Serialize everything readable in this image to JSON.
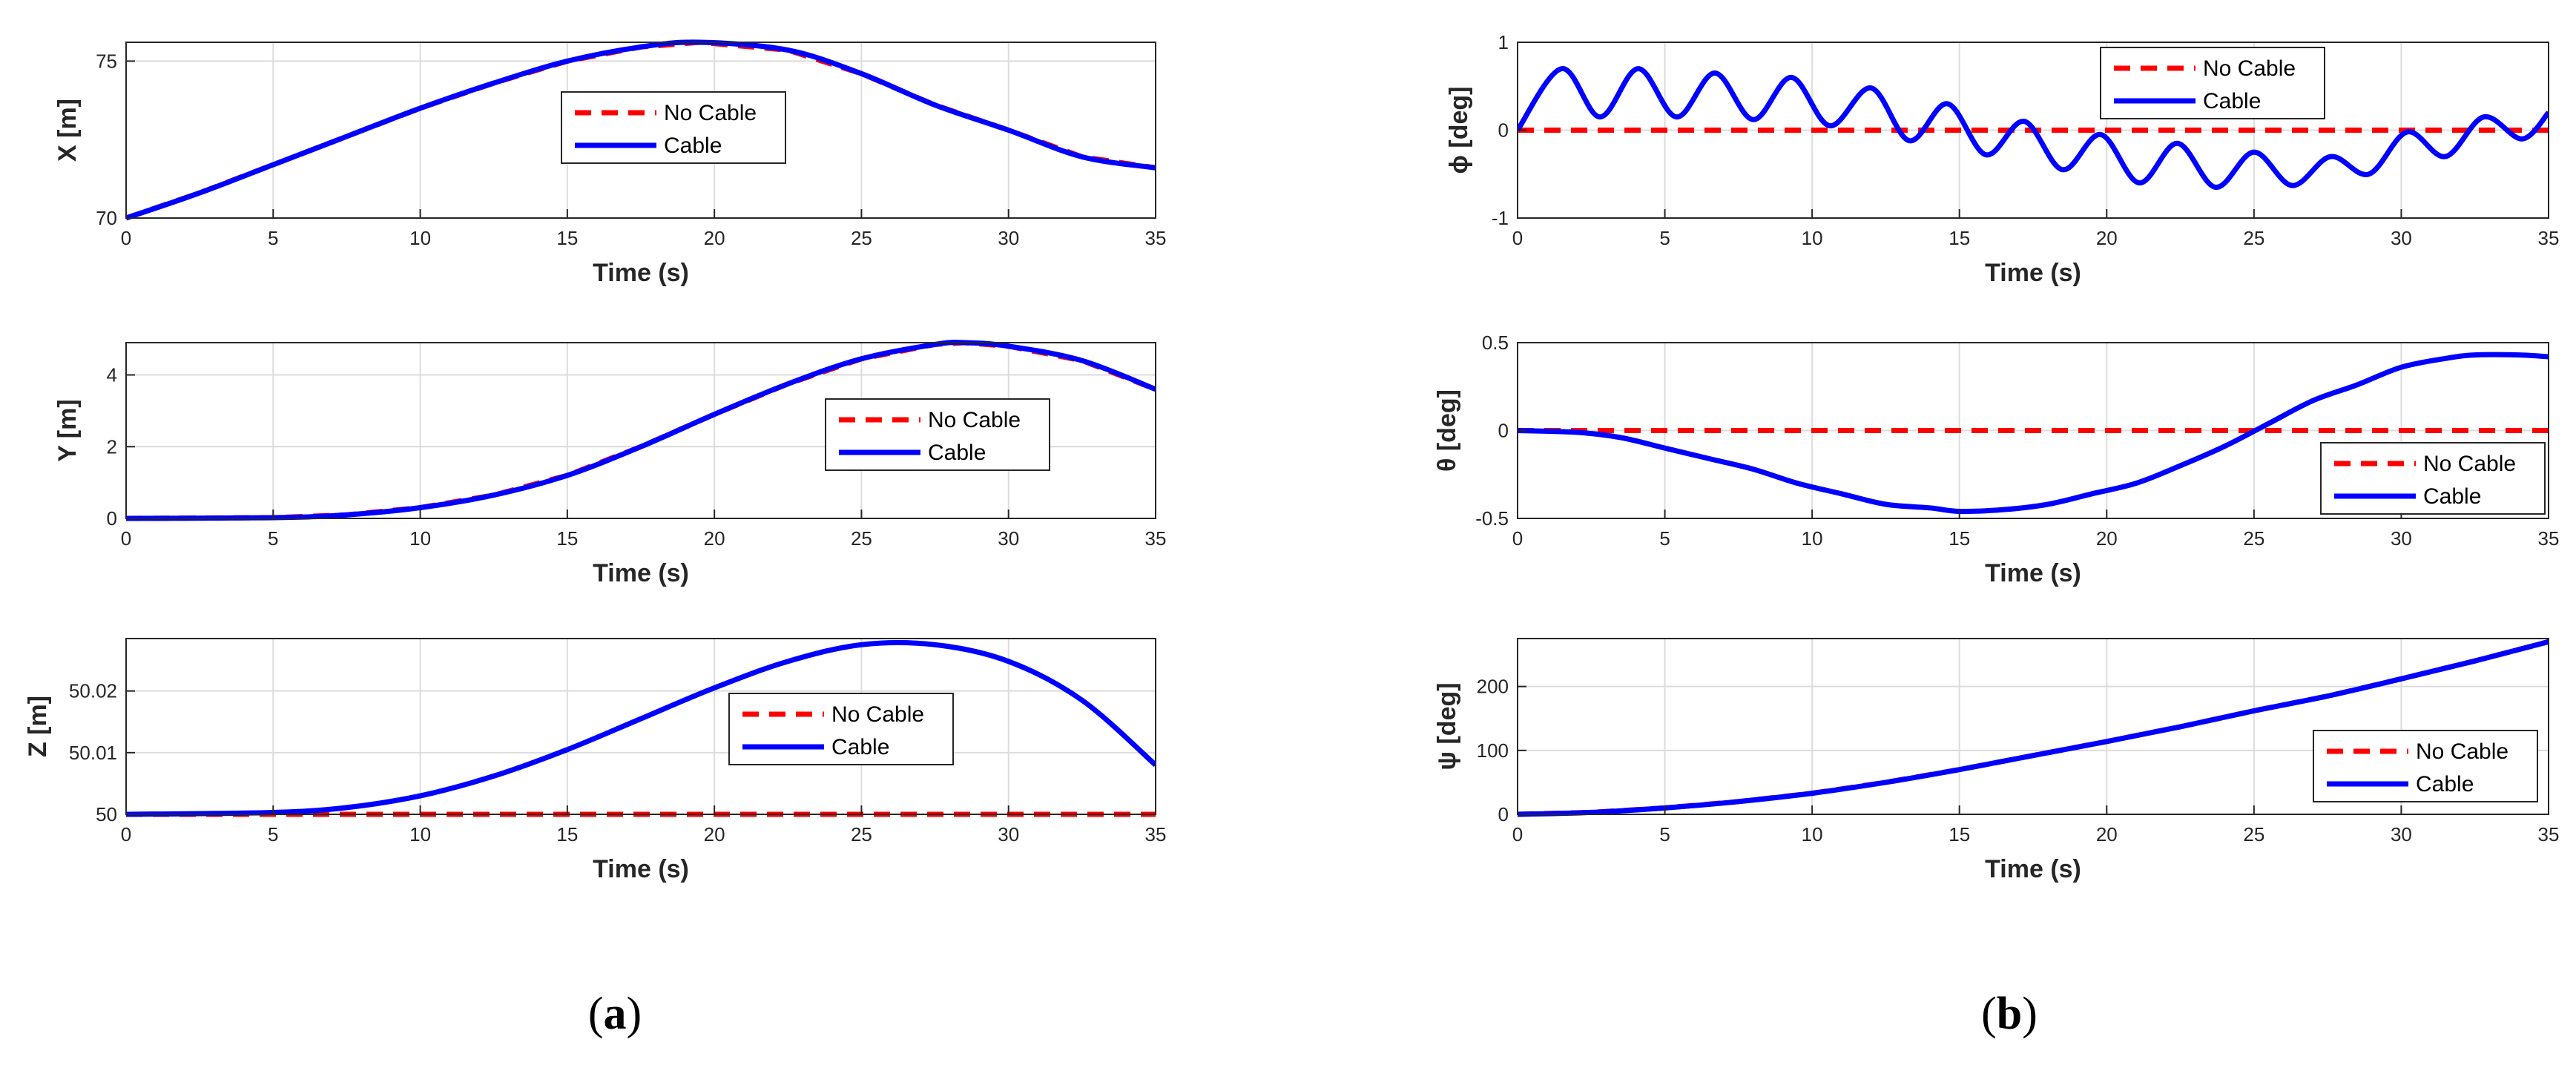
{
  "panel_labels": {
    "a": {
      "open": "(",
      "letter": "a",
      "close": ")"
    },
    "b": {
      "open": "(",
      "letter": "b",
      "close": ")"
    }
  },
  "colors": {
    "no_cable": "#ff0000",
    "cable": "#0000ff",
    "grid": "#dcdcdc",
    "axis": "#262626"
  },
  "chart_data": [
    {
      "id": "x",
      "type": "line",
      "xlabel": "Time (s)",
      "ylabel": "X [m]",
      "xlim": [
        0,
        35
      ],
      "ylim": [
        70,
        75.6
      ],
      "xticks": [
        0,
        5,
        10,
        15,
        20,
        25,
        30,
        35
      ],
      "yticks": [
        70,
        75
      ],
      "grid": true,
      "legend_position": "center",
      "series": [
        {
          "name": "No Cable",
          "style": "dashed",
          "x": [
            0,
            2.5,
            5,
            7.5,
            10,
            12.5,
            15,
            17.5,
            19.5,
            22.5,
            25,
            27.5,
            30,
            32.5,
            35
          ],
          "y": [
            70,
            70.8,
            71.7,
            72.6,
            73.5,
            74.3,
            75,
            75.45,
            75.6,
            75.35,
            74.6,
            73.6,
            72.8,
            71.95,
            71.6
          ]
        },
        {
          "name": "Cable",
          "style": "solid",
          "x": [
            0,
            2.5,
            5,
            7.5,
            10,
            12.5,
            15,
            17.5,
            19.5,
            22.5,
            25,
            27.5,
            30,
            32.5,
            35
          ],
          "y": [
            70,
            70.8,
            71.7,
            72.6,
            73.5,
            74.3,
            75,
            75.45,
            75.6,
            75.35,
            74.6,
            73.6,
            72.8,
            71.95,
            71.6
          ]
        }
      ]
    },
    {
      "id": "y",
      "type": "line",
      "xlabel": "Time (s)",
      "ylabel": "Y [m]",
      "xlim": [
        0,
        35
      ],
      "ylim": [
        0,
        4.9
      ],
      "xticks": [
        0,
        5,
        10,
        15,
        20,
        25,
        30,
        35
      ],
      "yticks": [
        0,
        2,
        4
      ],
      "grid": true,
      "legend_position": "right",
      "series": [
        {
          "name": "No Cable",
          "style": "dashed",
          "x": [
            0,
            5,
            7.5,
            10,
            12.5,
            15,
            17.5,
            20,
            22.5,
            25,
            27.5,
            28.5,
            30,
            32.5,
            35
          ],
          "y": [
            0,
            0.02,
            0.1,
            0.3,
            0.65,
            1.2,
            2,
            2.9,
            3.75,
            4.45,
            4.85,
            4.9,
            4.8,
            4.4,
            3.6
          ]
        },
        {
          "name": "Cable",
          "style": "solid",
          "x": [
            0,
            5,
            7.5,
            10,
            12.5,
            15,
            17.5,
            20,
            22.5,
            25,
            27.5,
            28.5,
            30,
            32.5,
            35
          ],
          "y": [
            0,
            0.02,
            0.1,
            0.3,
            0.65,
            1.2,
            2,
            2.9,
            3.75,
            4.45,
            4.85,
            4.9,
            4.8,
            4.4,
            3.6
          ]
        }
      ]
    },
    {
      "id": "z",
      "type": "line",
      "xlabel": "Time (s)",
      "ylabel": "Z [m]",
      "xlim": [
        0,
        35
      ],
      "ylim": [
        50,
        50.0285
      ],
      "xticks": [
        0,
        5,
        10,
        15,
        20,
        25,
        30,
        35
      ],
      "yticks": [
        50,
        50.01,
        50.02
      ],
      "ytick_labels": [
        "50",
        "50.01",
        "50.02"
      ],
      "grid": true,
      "legend_position": "right",
      "series": [
        {
          "name": "No Cable",
          "style": "dashed",
          "x": [
            0,
            35
          ],
          "y": [
            50,
            50
          ]
        },
        {
          "name": "Cable",
          "style": "solid",
          "x": [
            0,
            5,
            7.5,
            10,
            12.5,
            15,
            17.5,
            20,
            22.5,
            25,
            27.5,
            30,
            32.5,
            35
          ],
          "y": [
            50,
            50.0003,
            50.0011,
            50.003,
            50.0062,
            50.0105,
            50.0155,
            50.0205,
            50.0248,
            50.0275,
            50.0275,
            50.0248,
            50.0185,
            50.008
          ]
        }
      ]
    },
    {
      "id": "phi",
      "type": "line",
      "xlabel": "Time (s)",
      "ylabel": "ϕ [deg]",
      "xlim": [
        0,
        35
      ],
      "ylim": [
        -1,
        1
      ],
      "xticks": [
        0,
        5,
        10,
        15,
        20,
        25,
        30,
        35
      ],
      "yticks": [
        -1,
        0,
        1
      ],
      "grid": true,
      "legend_position": "top-right",
      "series": [
        {
          "name": "No Cable",
          "style": "dashed",
          "x": [
            0,
            35
          ],
          "y": [
            0,
            0
          ]
        },
        {
          "name": "Cable",
          "style": "solid",
          "oscillation_period_s": 2.6,
          "x": [
            0,
            1.5,
            2.8,
            4.1,
            5.4,
            6.7,
            8,
            9.3,
            10.6,
            12,
            13.3,
            14.6,
            15.9,
            17.2,
            18.5,
            19.8,
            21.1,
            22.4,
            23.7,
            25,
            26.3,
            27.6,
            28.9,
            30.2,
            31.5,
            32.8,
            34.1,
            35
          ],
          "y": [
            0,
            0.7,
            0.15,
            0.7,
            0.15,
            0.65,
            0.12,
            0.6,
            0.05,
            0.48,
            -0.12,
            0.3,
            -0.28,
            0.1,
            -0.45,
            -0.05,
            -0.6,
            -0.15,
            -0.65,
            -0.25,
            -0.63,
            -0.3,
            -0.5,
            -0.02,
            -0.3,
            0.15,
            -0.1,
            0.2
          ]
        }
      ]
    },
    {
      "id": "theta",
      "type": "line",
      "xlabel": "Time (s)",
      "ylabel": "θ [deg]",
      "xlim": [
        0,
        35
      ],
      "ylim": [
        -0.5,
        0.5
      ],
      "xticks": [
        0,
        5,
        10,
        15,
        20,
        25,
        30,
        35
      ],
      "yticks": [
        -0.5,
        0,
        0.5
      ],
      "grid": true,
      "legend_position": "bottom-right",
      "series": [
        {
          "name": "No Cable",
          "style": "dashed",
          "x": [
            0,
            35
          ],
          "y": [
            0,
            0
          ]
        },
        {
          "name": "Cable",
          "style": "solid",
          "x": [
            0,
            2,
            3.5,
            5,
            6.5,
            8,
            9.5,
            11,
            12.5,
            14,
            15,
            16.5,
            18,
            19.5,
            21,
            22.5,
            24,
            25.5,
            27,
            28.5,
            30,
            31.5,
            32.5,
            34,
            35
          ],
          "y": [
            0,
            -0.01,
            -0.04,
            -0.1,
            -0.16,
            -0.22,
            -0.3,
            -0.36,
            -0.42,
            -0.44,
            -0.46,
            -0.45,
            -0.42,
            -0.36,
            -0.3,
            -0.2,
            -0.09,
            0.04,
            0.17,
            0.26,
            0.36,
            0.41,
            0.43,
            0.43,
            0.42
          ]
        }
      ]
    },
    {
      "id": "psi",
      "type": "line",
      "xlabel": "Time (s)",
      "ylabel": "ψ [deg]",
      "xlim": [
        0,
        35
      ],
      "ylim": [
        0,
        275
      ],
      "xticks": [
        0,
        5,
        10,
        15,
        20,
        25,
        30,
        35
      ],
      "yticks": [
        0,
        100,
        200
      ],
      "grid": true,
      "legend_position": "bottom-right",
      "series": [
        {
          "name": "No Cable",
          "style": "dashed",
          "x": [
            0,
            2.5,
            5,
            7.5,
            10,
            12.5,
            15,
            17.5,
            20,
            22.5,
            25,
            27.5,
            30,
            32.5,
            35
          ],
          "y": [
            0,
            3,
            10,
            20,
            33,
            50,
            70,
            92,
            114,
            137,
            162,
            185,
            212,
            240,
            270
          ]
        },
        {
          "name": "Cable",
          "style": "solid",
          "x": [
            0,
            2.5,
            5,
            7.5,
            10,
            12.5,
            15,
            17.5,
            20,
            22.5,
            25,
            27.5,
            30,
            32.5,
            35
          ],
          "y": [
            0,
            3,
            10,
            20,
            33,
            50,
            70,
            92,
            114,
            137,
            162,
            185,
            212,
            240,
            270
          ]
        }
      ]
    }
  ]
}
